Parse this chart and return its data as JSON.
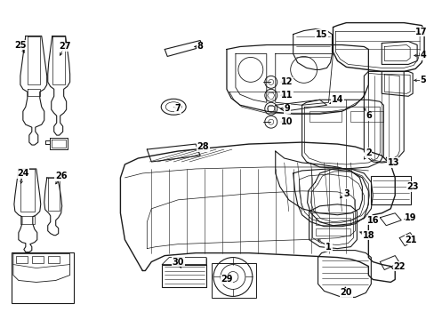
{
  "bg_color": "#ffffff",
  "line_color": "#1a1a1a",
  "fig_width": 4.89,
  "fig_height": 3.6,
  "dpi": 100,
  "label_fontsize": 7.0,
  "label_fontweight": "bold"
}
